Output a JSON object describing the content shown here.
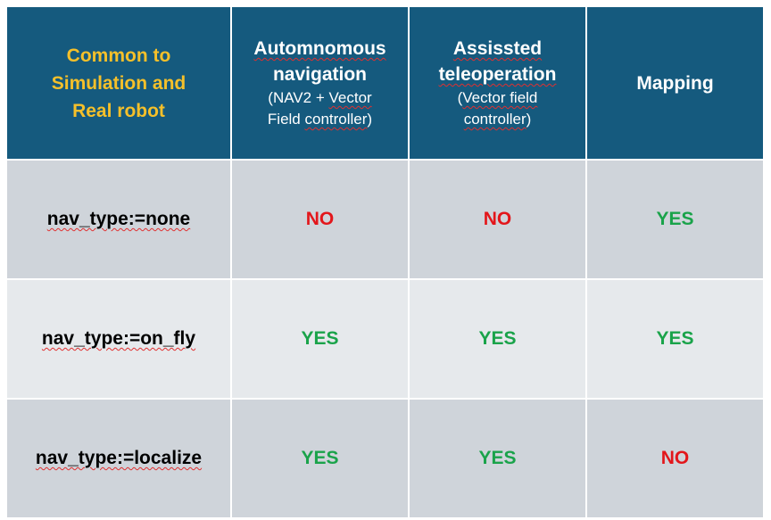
{
  "colors": {
    "header_bg": "#155a7e",
    "corner_text": "#f5c02a",
    "header_text": "#ffffff",
    "row_dark": "#cfd4da",
    "row_light": "#e6e9ec",
    "yes": "#1aa34a",
    "no": "#e3161b"
  },
  "header": {
    "corner": [
      "Common to",
      "Simulation and",
      "Real robot"
    ],
    "columns": [
      {
        "title": [
          "Automnomous",
          "navigation"
        ],
        "subtitle": [
          "(NAV2 + Vector",
          "Field controller)"
        ]
      },
      {
        "title": [
          "Assissted",
          "teleoperation"
        ],
        "subtitle": [
          "(Vector field",
          "controller)"
        ]
      },
      {
        "title": [
          "Mapping"
        ],
        "subtitle": []
      }
    ]
  },
  "rows": [
    {
      "label": "nav_type:=none",
      "values": [
        "NO",
        "NO",
        "YES"
      ]
    },
    {
      "label": "nav_type:=on_fly",
      "values": [
        "YES",
        "YES",
        "YES"
      ]
    },
    {
      "label": "nav_type:=localize",
      "values": [
        "YES",
        "YES",
        "NO"
      ]
    }
  ]
}
